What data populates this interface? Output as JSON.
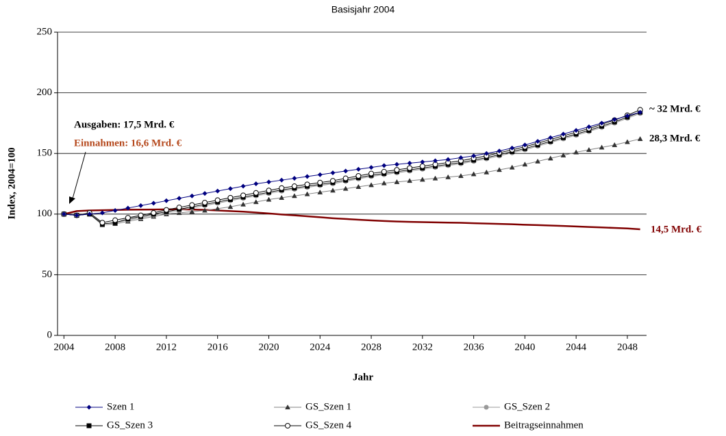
{
  "chart_data": {
    "type": "line",
    "title": "Basisjahr 2004",
    "x_label": "Jahr",
    "y_label": "Index, 2004=100",
    "x": [
      2004,
      2005,
      2006,
      2007,
      2008,
      2009,
      2010,
      2011,
      2012,
      2013,
      2014,
      2015,
      2016,
      2017,
      2018,
      2019,
      2020,
      2021,
      2022,
      2023,
      2024,
      2025,
      2026,
      2027,
      2028,
      2029,
      2030,
      2031,
      2032,
      2033,
      2034,
      2035,
      2036,
      2037,
      2038,
      2039,
      2040,
      2041,
      2042,
      2043,
      2044,
      2045,
      2046,
      2047,
      2048,
      2049
    ],
    "xlim": [
      2003.5,
      2049.5
    ],
    "xticks": [
      2004,
      2008,
      2012,
      2016,
      2020,
      2024,
      2028,
      2032,
      2036,
      2040,
      2044,
      2048
    ],
    "ylim": [
      0,
      250
    ],
    "yticks": [
      0,
      50,
      100,
      150,
      200,
      250
    ],
    "grid": true,
    "series": [
      {
        "name": "Szen 1",
        "color": "#000080",
        "marker": "diamond",
        "values": [
          100,
          99,
          100,
          101,
          103,
          105,
          107,
          109,
          111,
          113,
          115,
          117,
          119,
          121,
          123,
          125,
          126.5,
          128,
          129.5,
          131,
          132.5,
          134,
          135.5,
          137,
          138.5,
          140,
          141,
          142,
          143,
          144,
          145,
          146.5,
          148,
          150,
          152,
          154.5,
          157,
          160,
          163,
          166,
          169,
          172,
          175,
          178,
          181,
          184
        ]
      },
      {
        "name": "GS_Szen 1",
        "color": "#808080",
        "marker": "triangle",
        "values": [
          100,
          99,
          100,
          91,
          92,
          94,
          96,
          98,
          100,
          101,
          102,
          103,
          104.5,
          106,
          108,
          110,
          112,
          113.5,
          115,
          116.5,
          118,
          119.5,
          121,
          122.5,
          124,
          125.5,
          126.5,
          127.5,
          128.5,
          129.5,
          130.5,
          131.5,
          133,
          134.5,
          136.5,
          138.5,
          141,
          143.5,
          146,
          148.5,
          151,
          153,
          155,
          157,
          159.5,
          162
        ]
      },
      {
        "name": "GS_Szen 2",
        "color": "#999999",
        "marker": "circle",
        "values": [
          100,
          99,
          100,
          92,
          93,
          95,
          97,
          99,
          101,
          103,
          105,
          107,
          109,
          111,
          113,
          115,
          117,
          119,
          120.5,
          122,
          123.5,
          125,
          127,
          129,
          131,
          132.5,
          134,
          135.5,
          137,
          138.5,
          140,
          141.5,
          143.5,
          145.5,
          148,
          150.5,
          153,
          156,
          159,
          162,
          165,
          168,
          171.5,
          175,
          179,
          183
        ]
      },
      {
        "name": "GS_Szen 3",
        "color": "#000000",
        "marker": "square",
        "values": [
          100,
          99,
          100,
          92,
          93,
          96,
          98,
          100,
          102,
          104,
          106,
          108,
          110,
          112,
          114,
          116,
          118,
          120,
          121.5,
          123,
          124.5,
          126,
          128,
          130,
          132,
          133.5,
          135,
          136.5,
          138,
          139.5,
          141,
          142.5,
          144.5,
          146.5,
          149,
          151.5,
          154,
          157,
          160,
          163,
          166,
          169,
          172.5,
          176,
          180,
          184
        ]
      },
      {
        "name": "GS_Szen 4",
        "color": "#000000",
        "marker": "open-circle",
        "values": [
          100,
          99,
          101,
          93,
          95,
          97,
          99,
          101,
          103.5,
          105.5,
          107.5,
          109.5,
          111.5,
          113.5,
          115.5,
          117.5,
          119.5,
          121.5,
          123,
          124.5,
          126,
          127.5,
          129.5,
          131.5,
          133.5,
          135,
          136.5,
          138,
          139.5,
          141,
          142.5,
          144,
          146,
          148,
          150.5,
          153,
          155.5,
          158.5,
          161.5,
          164.5,
          167.5,
          170.5,
          174,
          177.5,
          181.5,
          186
        ]
      },
      {
        "name": "Beitragseinnahmen",
        "color": "#800000",
        "marker": "none",
        "values": [
          100,
          102.5,
          103,
          103.2,
          103.4,
          103.6,
          103.7,
          103.8,
          103.9,
          104,
          103.8,
          103.5,
          103,
          102.5,
          102,
          101.3,
          100.5,
          99.7,
          99,
          98.2,
          97.4,
          96.6,
          96,
          95.4,
          94.8,
          94.3,
          93.9,
          93.6,
          93.4,
          93.2,
          93,
          92.8,
          92.5,
          92.2,
          91.9,
          91.6,
          91.2,
          90.9,
          90.6,
          90.2,
          89.8,
          89.4,
          89,
          88.6,
          88.2,
          87.5
        ]
      }
    ],
    "annotations": [
      {
        "text": "Ausgaben: 17,5 Mrd. €",
        "color": "#000000"
      },
      {
        "text": "Einnahmen: 16,6 Mrd. €",
        "color": "#b5481c"
      },
      {
        "text": "~ 32 Mrd. €",
        "color": "#000000"
      },
      {
        "text": "28,3 Mrd. €",
        "color": "#000000"
      },
      {
        "text": "14,5 Mrd. €",
        "color": "#800000"
      }
    ]
  }
}
